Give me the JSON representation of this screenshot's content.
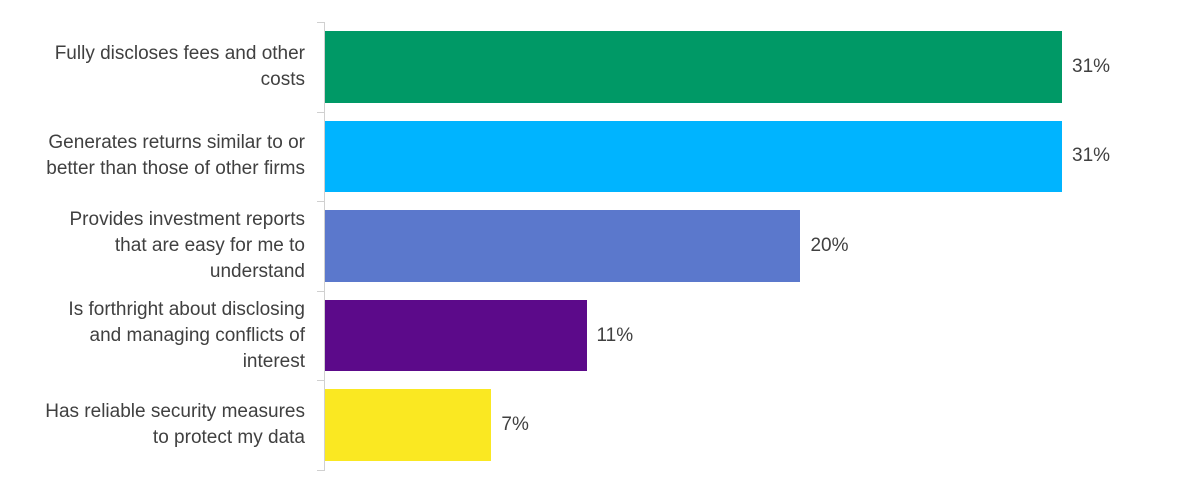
{
  "chart_data": {
    "type": "bar",
    "orientation": "horizontal",
    "categories": [
      "Fully discloses fees and other costs",
      "Generates returns similar to or better than those of other firms",
      "Provides investment reports that are easy for me to understand",
      "Is forthright about disclosing and managing conflicts of interest",
      "Has reliable security measures to protect my data"
    ],
    "values": [
      31,
      31,
      20,
      11,
      7
    ],
    "value_labels": [
      "31%",
      "31%",
      "20%",
      "11%",
      "7%"
    ],
    "colors": [
      "#009966",
      "#00b4ff",
      "#5b78cc",
      "#5c0a8a",
      "#fae822"
    ]
  }
}
